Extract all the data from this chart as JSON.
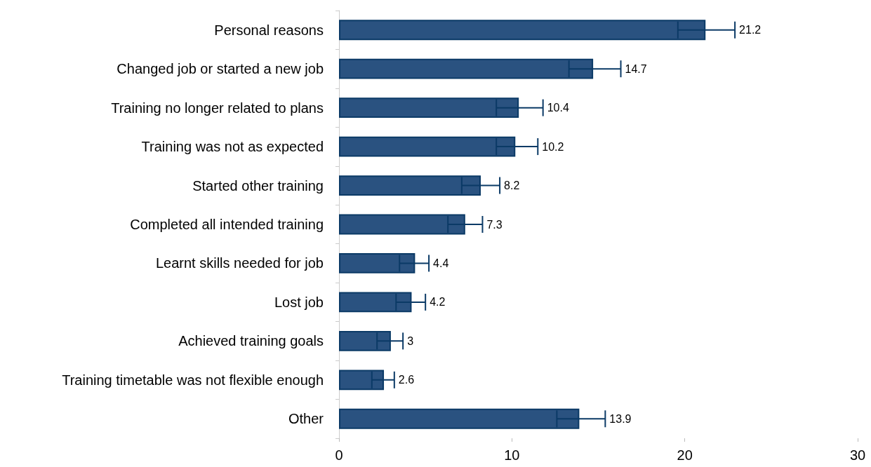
{
  "chart_data": {
    "type": "bar",
    "orientation": "horizontal",
    "categories": [
      "Personal reasons",
      "Changed job or started a new job",
      "Training no longer related to plans",
      "Training was not as expected",
      "Started other training",
      "Completed all intended training",
      "Learnt skills needed for job",
      "Lost job",
      "Achieved training goals",
      "Training timetable was not flexible enough",
      "Other"
    ],
    "values": [
      21.2,
      14.7,
      10.4,
      10.2,
      8.2,
      7.3,
      4.4,
      4.2,
      3,
      2.6,
      13.9
    ],
    "errors": [
      [
        19.6,
        22.9
      ],
      [
        13.3,
        16.3
      ],
      [
        9.1,
        11.8
      ],
      [
        9.1,
        11.5
      ],
      [
        7.1,
        9.3
      ],
      [
        6.3,
        8.3
      ],
      [
        3.5,
        5.2
      ],
      [
        3.3,
        5.0
      ],
      [
        2.2,
        3.7
      ],
      [
        1.9,
        3.2
      ],
      [
        12.6,
        15.4
      ]
    ],
    "color": "#2a5280",
    "xlim": [
      0,
      30
    ],
    "xticks": [
      0,
      10,
      20,
      30
    ],
    "data_labels": true,
    "grid": false
  }
}
